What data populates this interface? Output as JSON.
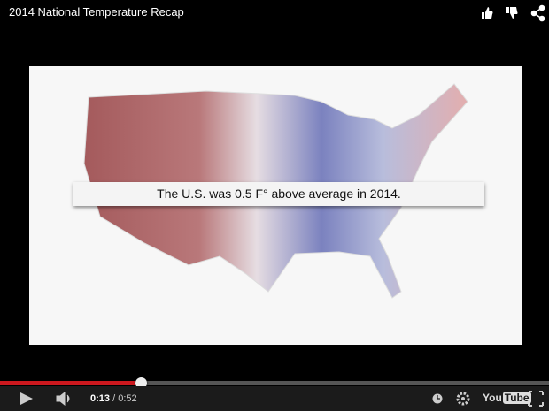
{
  "header": {
    "title": "2014 National Temperature Recap"
  },
  "video": {
    "caption": "The U.S. was 0.5  F° above average in 2014."
  },
  "controls": {
    "current_time": "0:13",
    "separator": "/",
    "duration": "0:52",
    "logo_you": "You",
    "logo_tube": "Tube"
  }
}
